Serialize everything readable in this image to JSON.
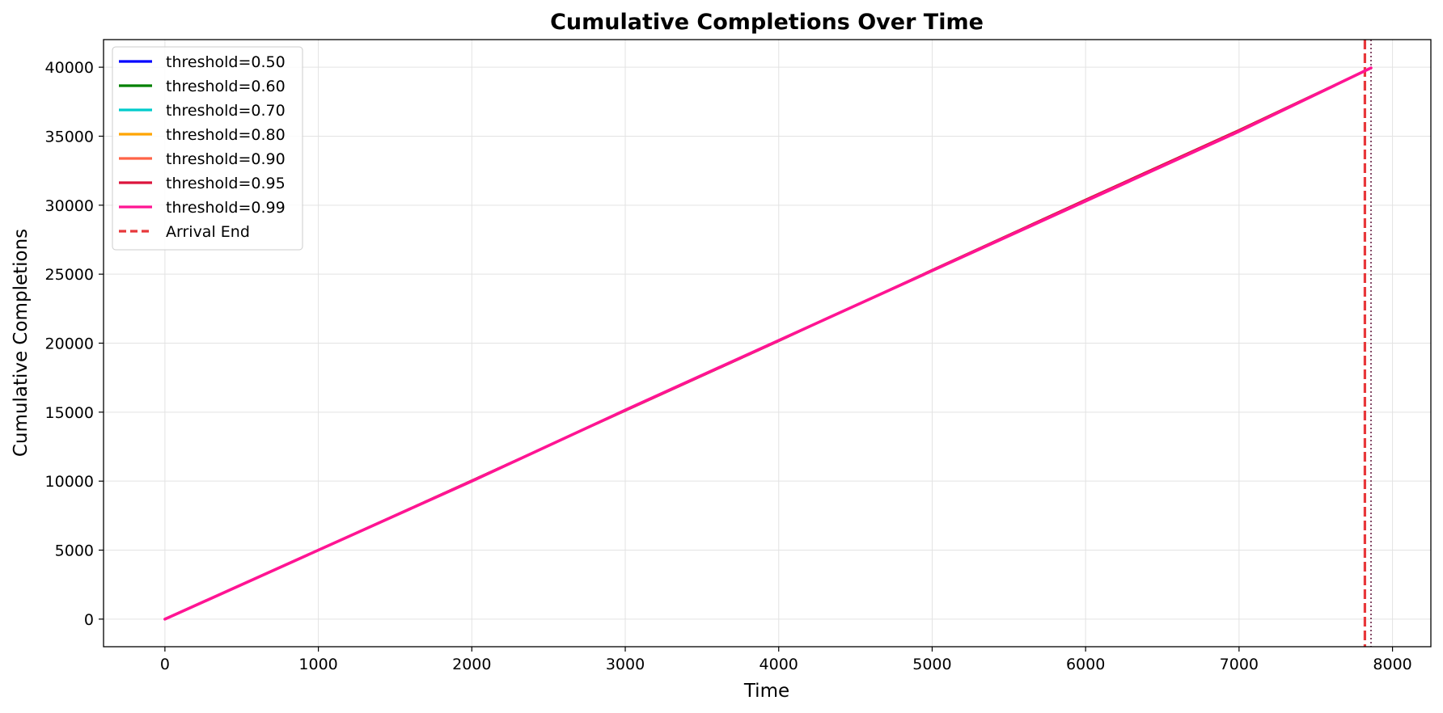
{
  "chart_data": {
    "type": "line",
    "title": "Cumulative Completions Over Time",
    "xlabel": "Time",
    "ylabel": "Cumulative Completions",
    "xlim": [
      -400,
      8250
    ],
    "ylim": [
      -2000,
      42000
    ],
    "xticks": [
      0,
      1000,
      2000,
      3000,
      4000,
      5000,
      6000,
      7000,
      8000
    ],
    "yticks": [
      0,
      5000,
      10000,
      15000,
      20000,
      25000,
      30000,
      35000,
      40000
    ],
    "grid": true,
    "legend_position": "upper-left",
    "series": [
      {
        "name": "threshold=0.50",
        "color": "#0000ff",
        "x": [
          0,
          1000,
          2000,
          3000,
          4000,
          5000,
          6000,
          7000,
          7860
        ],
        "y": [
          0,
          5000,
          10050,
          15100,
          20150,
          25300,
          30400,
          35450,
          39950
        ]
      },
      {
        "name": "threshold=0.60",
        "color": "#008000",
        "x": [
          0,
          1000,
          2000,
          3000,
          4000,
          5000,
          6000,
          7000,
          7860
        ],
        "y": [
          0,
          5000,
          10050,
          15100,
          20150,
          25300,
          30400,
          35450,
          39950
        ]
      },
      {
        "name": "threshold=0.70",
        "color": "#00cccc",
        "x": [
          0,
          1000,
          2000,
          3000,
          4000,
          5000,
          6000,
          7000,
          7860
        ],
        "y": [
          0,
          5000,
          10050,
          15100,
          20150,
          25300,
          30400,
          35450,
          39950
        ]
      },
      {
        "name": "threshold=0.80",
        "color": "#ffa500",
        "x": [
          0,
          1000,
          2000,
          3000,
          4000,
          5000,
          6000,
          7000,
          7860
        ],
        "y": [
          0,
          5000,
          10050,
          15100,
          20150,
          25300,
          30400,
          35450,
          39950
        ]
      },
      {
        "name": "threshold=0.90",
        "color": "#ff6347",
        "x": [
          0,
          1000,
          2000,
          3000,
          4000,
          5000,
          6000,
          7000,
          7860
        ],
        "y": [
          0,
          5000,
          10050,
          15100,
          20150,
          25300,
          30400,
          35450,
          39950
        ]
      },
      {
        "name": "threshold=0.95",
        "color": "#dc143c",
        "x": [
          0,
          1000,
          2000,
          3000,
          4000,
          5000,
          6000,
          7000,
          7860
        ],
        "y": [
          0,
          5000,
          10050,
          15100,
          20150,
          25300,
          30400,
          35450,
          39950
        ]
      },
      {
        "name": "threshold=0.99",
        "color": "#ff1493",
        "x": [
          0,
          1000,
          2000,
          3000,
          4000,
          5000,
          6000,
          7000,
          7860
        ],
        "y": [
          0,
          5000,
          10000,
          15150,
          20200,
          25250,
          30300,
          35350,
          39950
        ]
      }
    ],
    "reference_lines": [
      {
        "name": "Arrival End",
        "x": 7820,
        "style": "dashed",
        "color": "#e8383b"
      },
      {
        "x": 7860,
        "style": "dotted",
        "color": "#7a3b5a"
      }
    ]
  }
}
